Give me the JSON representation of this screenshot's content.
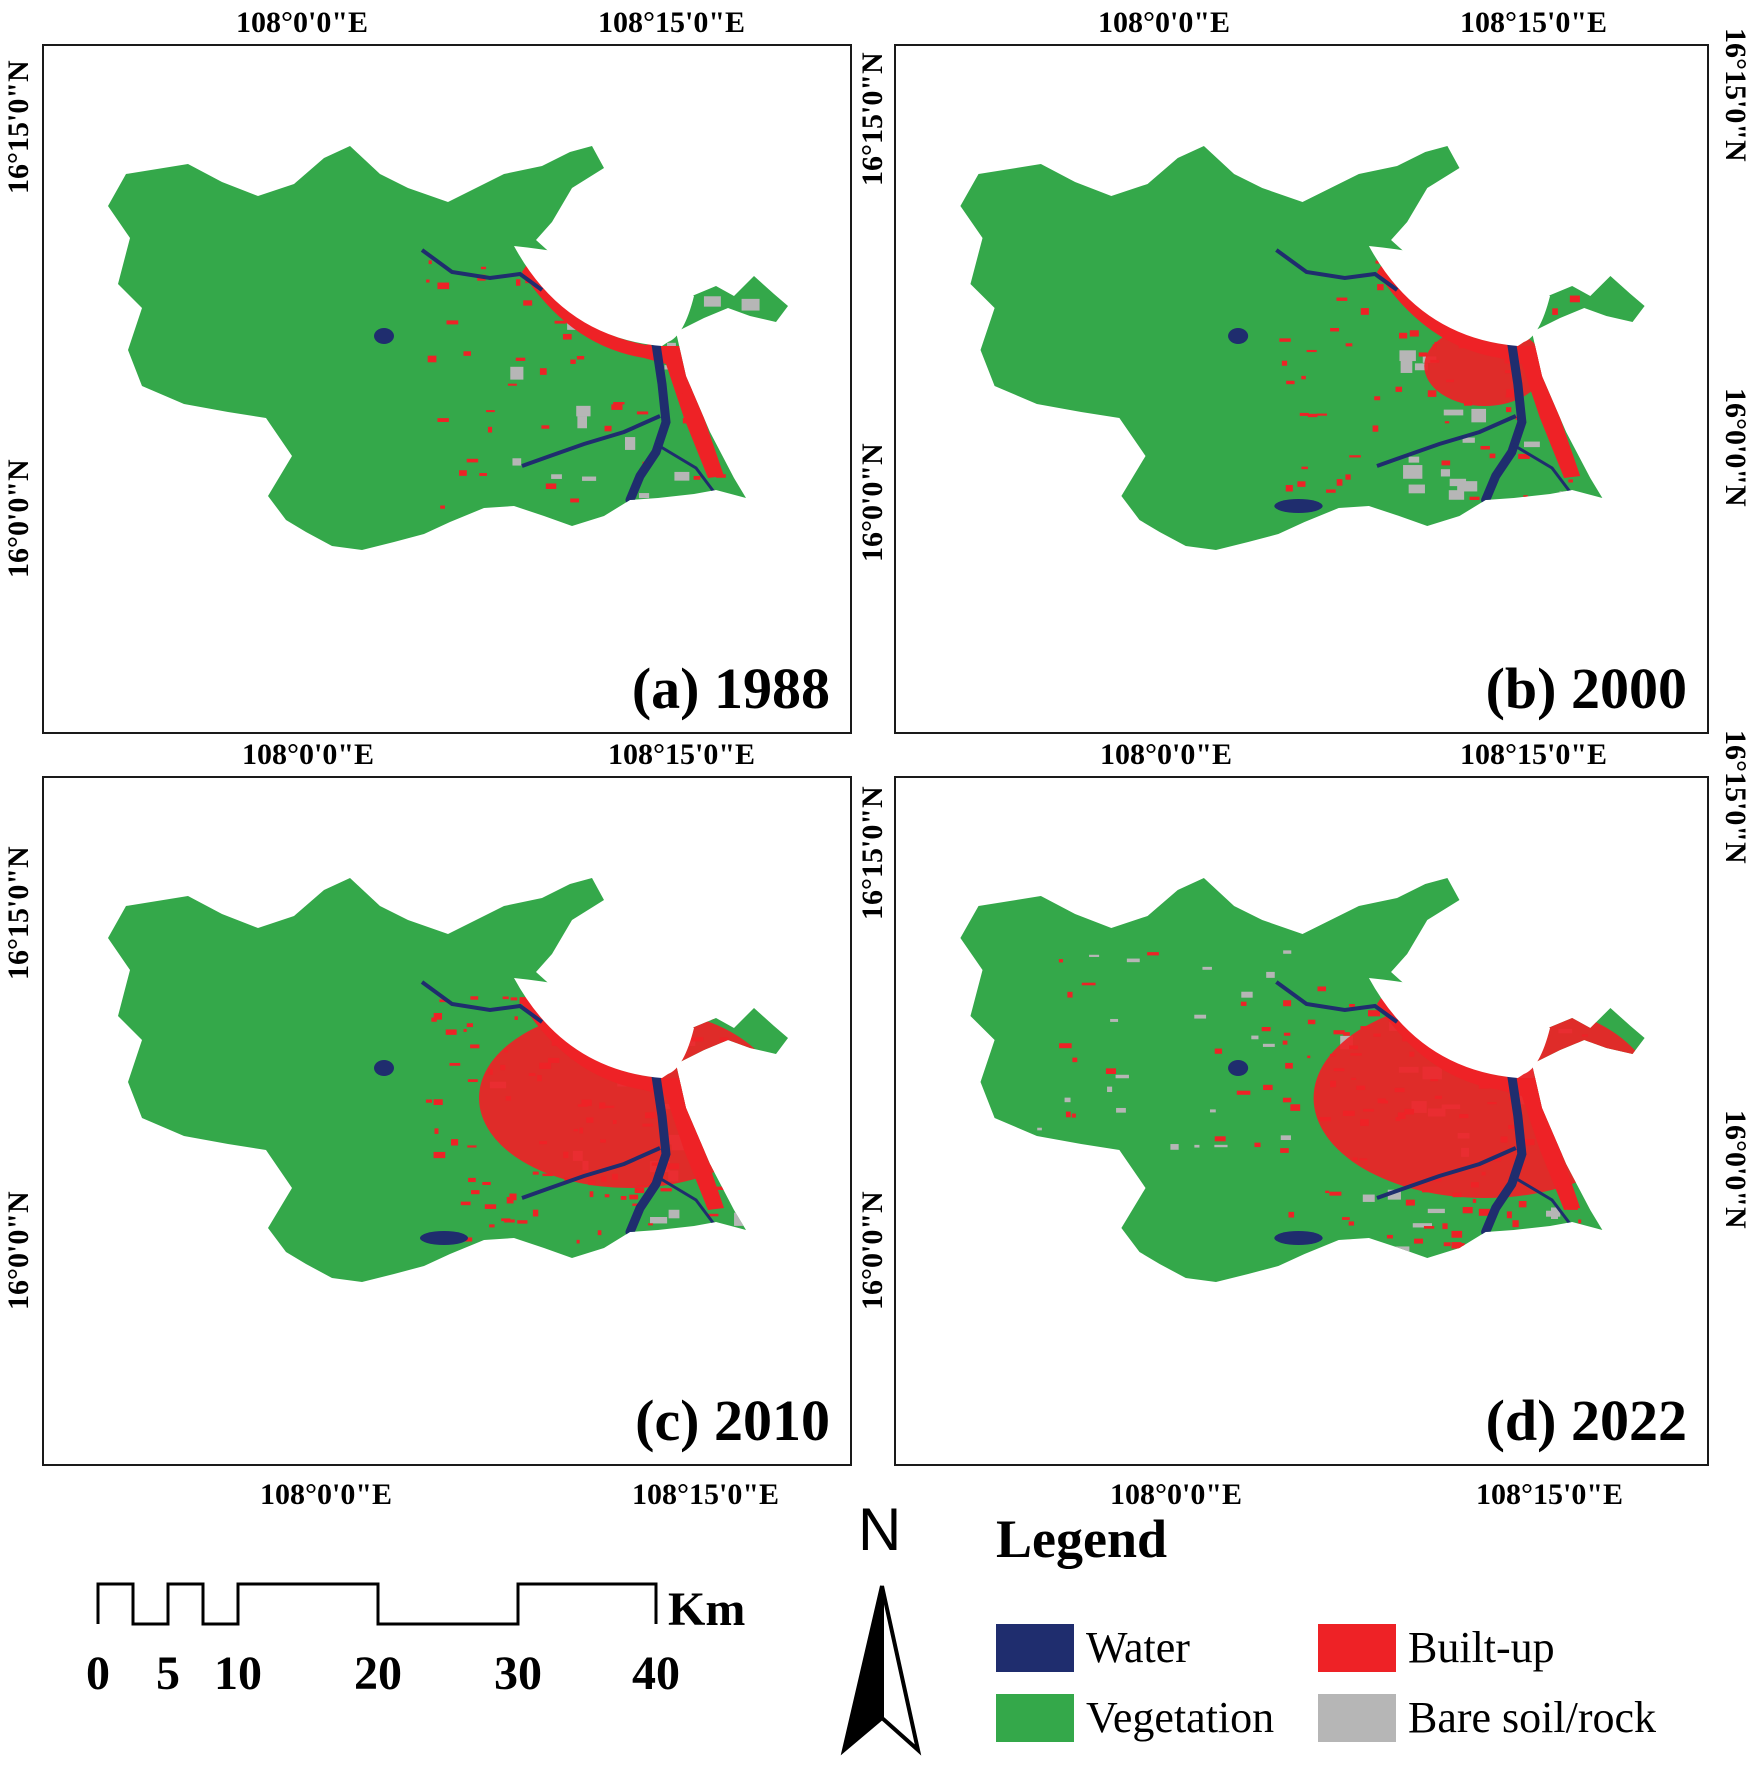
{
  "colors": {
    "water": "#1f2d6e",
    "vegetation": "#34a84a",
    "builtup": "#ee2226",
    "bare": "#b6b6b6"
  },
  "coords": {
    "lon_left": "108°0'0\"E",
    "lon_right": "108°15'0\"E",
    "lat_top": "16°15'0\"N",
    "lat_bottom": "16°0'0\"N"
  },
  "panels": [
    {
      "id": "a",
      "title": "(a) 1988"
    },
    {
      "id": "b",
      "title": "(b) 2000"
    },
    {
      "id": "c",
      "title": "(c) 2010"
    },
    {
      "id": "d",
      "title": "(d) 2022"
    }
  ],
  "scale_bar": {
    "unit": "Km",
    "labels": [
      "0",
      "5",
      "10",
      "20",
      "30",
      "40"
    ]
  },
  "north_arrow": {
    "label": "N"
  },
  "legend": {
    "title": "Legend",
    "items": [
      {
        "key": "water",
        "label": "Water"
      },
      {
        "key": "builtup",
        "label": "Built-up"
      },
      {
        "key": "vegetation",
        "label": "Vegetation"
      },
      {
        "key": "bare",
        "label": "Bare soil/rock"
      }
    ]
  }
}
